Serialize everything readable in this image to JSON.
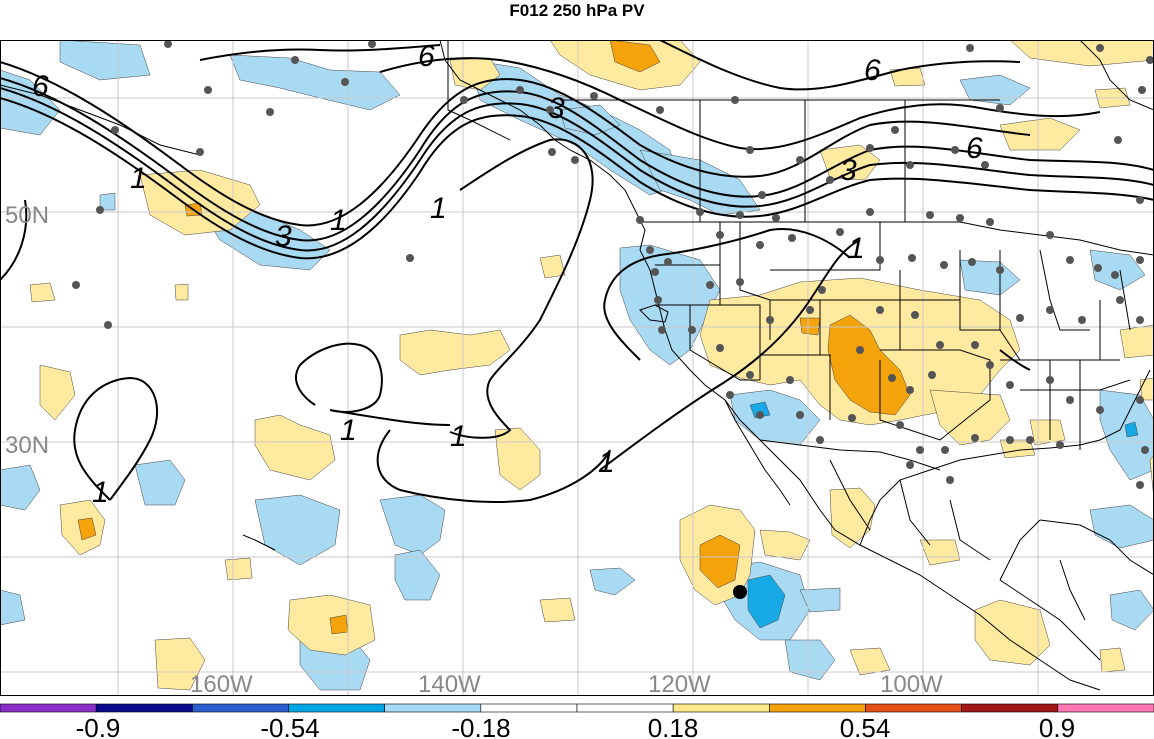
{
  "title": "F012 250 hPa PV",
  "lat_labels": [
    "50N",
    "30N"
  ],
  "lon_labels": [
    "160W",
    "140W",
    "120W",
    "100W"
  ],
  "contour_labels": [
    "6",
    "6",
    "6",
    "6",
    "3",
    "3",
    "3",
    "1",
    "1",
    "1",
    "1",
    "1",
    "1",
    "1",
    "1"
  ],
  "colorbar": {
    "tick_labels": [
      "-0.9",
      "-0.54",
      "-0.18",
      "0.18",
      "0.54",
      "0.9"
    ],
    "colors": [
      "#8b2fc9",
      "#0a0a8c",
      "#2e5fd1",
      "#00a6e6",
      "#a4d8f5",
      "#ffffff",
      "#ffffff",
      "#ffe88a",
      "#f5a30a",
      "#e8501a",
      "#a01818",
      "#ff78b4"
    ]
  },
  "fill_colors": {
    "light_blue": "#a9daf4",
    "mid_blue": "#17a9e6",
    "light_yellow": "#ffeaa0",
    "orange": "#f5a30a"
  },
  "marker_colors": {
    "station": "#555555",
    "point": "#000000"
  }
}
